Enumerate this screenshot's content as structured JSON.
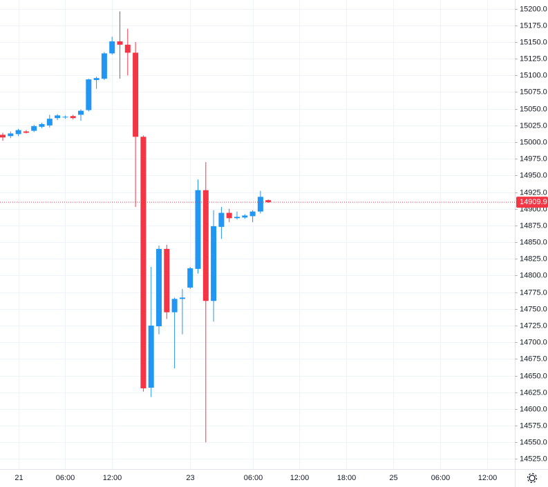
{
  "chart_data": {
    "type": "candlestick",
    "categories": [
      null,
      null,
      "21",
      null,
      null,
      null,
      null,
      null,
      "06:00",
      null,
      null,
      null,
      null,
      null,
      "12:00",
      null,
      null,
      null,
      null,
      null,
      null,
      null,
      null,
      null,
      "23",
      null,
      null,
      null,
      null,
      null,
      null,
      null,
      "06:00",
      null,
      null,
      null,
      null,
      null,
      "12:00",
      null,
      null,
      null,
      null,
      null,
      "18:00",
      null,
      null,
      null,
      null,
      null,
      "25",
      null,
      null,
      null,
      null,
      null,
      "06:00",
      null,
      null,
      null,
      null,
      null,
      "12:00",
      null,
      null
    ],
    "open": [
      15011,
      15009,
      15012,
      15016,
      15017,
      15023,
      15025,
      15036,
      15037,
      15039,
      15041,
      15048,
      15093,
      15095,
      15133,
      15151,
      15146,
      15134,
      15008,
      14632,
      14724,
      14840,
      14745,
      14765,
      14782,
      14810,
      14928,
      14762,
      14873,
      14894,
      14886,
      14887,
      14889,
      14896,
      14913,
      null,
      null,
      null,
      null,
      null,
      null,
      null,
      null,
      null,
      null,
      null,
      null,
      null,
      null,
      null,
      null,
      null,
      null,
      null,
      null,
      null,
      null,
      null,
      null,
      null,
      null,
      null,
      null,
      null,
      null
    ],
    "high": [
      15014,
      15016,
      15020,
      15018,
      15026,
      15029,
      15041,
      15042,
      15040,
      15041,
      15049,
      15095,
      15098,
      15135,
      15158,
      15196,
      15170,
      15150,
      15010,
      14813,
      14845,
      14846,
      14767,
      14780,
      14813,
      14944,
      14970,
      14898,
      14903,
      14900,
      14896,
      14892,
      14898,
      14927,
      14914,
      null,
      null,
      null,
      null,
      null,
      null,
      null,
      null,
      null,
      null,
      null,
      null,
      null,
      null,
      null,
      null,
      null,
      null,
      null,
      null,
      null,
      null,
      null,
      null,
      null,
      null,
      null,
      null,
      null,
      null
    ],
    "low": [
      15002,
      15006,
      15009,
      15013,
      15015,
      15021,
      15022,
      15033,
      15035,
      15034,
      15032,
      15046,
      15080,
      15093,
      15131,
      15095,
      15100,
      14903,
      14626,
      14618,
      14712,
      14735,
      14661,
      14712,
      14780,
      14803,
      14550,
      14731,
      14855,
      14880,
      14884,
      14885,
      14880,
      14893,
      14909,
      null,
      null,
      null,
      null,
      null,
      null,
      null,
      null,
      null,
      null,
      null,
      null,
      null,
      null,
      null,
      null,
      null,
      null,
      null,
      null,
      null,
      null,
      null,
      null,
      null,
      null,
      null,
      null,
      null,
      null
    ],
    "close": [
      15007,
      15013,
      15018,
      15014,
      15024,
      15027,
      15035,
      15040,
      15038,
      15036,
      15047,
      15094,
      15096,
      15133,
      15151,
      15146,
      15134,
      15008,
      14631,
      14725,
      14840,
      14745,
      14765,
      14767,
      14811,
      14928,
      14762,
      14874,
      14894,
      14886,
      14888,
      14890,
      14896,
      14918,
      14910,
      null,
      null,
      null,
      null,
      null,
      null,
      null,
      null,
      null,
      null,
      null,
      null,
      null,
      null,
      null,
      null,
      null,
      null,
      null,
      null,
      null,
      null,
      null,
      null,
      null,
      null,
      null,
      null,
      null,
      null
    ],
    "up_color": "#2196f3",
    "down_color": "#f23645",
    "last_price": 14909.9,
    "ylim": [
      14510,
      15213
    ],
    "yticks": [
      {
        "value": 14525,
        "label": "14525.0"
      },
      {
        "value": 14550,
        "label": "14550.0"
      },
      {
        "value": 14575,
        "label": "14575.0"
      },
      {
        "value": 14600,
        "label": "14600.0"
      },
      {
        "value": 14625,
        "label": "14625.0"
      },
      {
        "value": 14650,
        "label": "14650.0"
      },
      {
        "value": 14675,
        "label": "14675.0"
      },
      {
        "value": 14700,
        "label": "14700.0"
      },
      {
        "value": 14725,
        "label": "14725.0"
      },
      {
        "value": 14750,
        "label": "14750.0"
      },
      {
        "value": 14775,
        "label": "14775.0"
      },
      {
        "value": 14800,
        "label": "14800.0"
      },
      {
        "value": 14825,
        "label": "14825.0"
      },
      {
        "value": 14850,
        "label": "14850.0"
      },
      {
        "value": 14875,
        "label": "14875.0"
      },
      {
        "value": 14900,
        "label": "14900.0"
      },
      {
        "value": 14925,
        "label": "14925.0"
      },
      {
        "value": 14950,
        "label": "14950.0"
      },
      {
        "value": 14975,
        "label": "14975.0"
      },
      {
        "value": 15000,
        "label": "15000.0"
      },
      {
        "value": 15025,
        "label": "15025.0"
      },
      {
        "value": 15050,
        "label": "15050.0"
      },
      {
        "value": 15075,
        "label": "15075.0"
      },
      {
        "value": 15100,
        "label": "15100.0"
      },
      {
        "value": 15125,
        "label": "15125.0"
      },
      {
        "value": 15150,
        "label": "15150.0"
      },
      {
        "value": 15175,
        "label": "15175.0"
      },
      {
        "value": 15200,
        "label": "15200.0"
      }
    ],
    "grid": true
  }
}
